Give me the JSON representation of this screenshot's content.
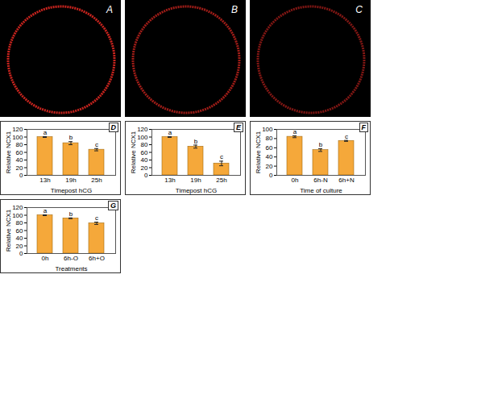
{
  "images": [
    {
      "label": "A"
    },
    {
      "label": "B"
    },
    {
      "label": "C"
    }
  ],
  "chart_data": [
    {
      "type": "bar",
      "title": "D",
      "categories": [
        "13h",
        "19h",
        "25h"
      ],
      "values": [
        100,
        84,
        67
      ],
      "errors": [
        1,
        4,
        3
      ],
      "significance": [
        "a",
        "b",
        "c"
      ],
      "color": "#f5a83a",
      "ylabel": "Relative NCX1",
      "xlabel": "Timepost hCG",
      "ylim": [
        0,
        120
      ],
      "yticks": [
        0,
        20,
        40,
        60,
        80,
        100,
        120
      ]
    },
    {
      "type": "bar",
      "title": "E",
      "categories": [
        "13h",
        "19h",
        "25h"
      ],
      "values": [
        100,
        75,
        31
      ],
      "errors": [
        1,
        4,
        6
      ],
      "significance": [
        "a",
        "b",
        "c"
      ],
      "color": "#f5a83a",
      "ylabel": "Relative NCX1",
      "xlabel": "Timepost hCG",
      "ylim": [
        0,
        120
      ],
      "yticks": [
        0,
        20,
        40,
        60,
        80,
        100,
        120
      ]
    },
    {
      "type": "bar",
      "title": "F",
      "categories": [
        "0h",
        "6h-N",
        "6h+N"
      ],
      "values": [
        84,
        55,
        75
      ],
      "errors": [
        2,
        3,
        1
      ],
      "significance": [
        "a",
        "b",
        "c"
      ],
      "color": "#f5a83a",
      "ylabel": "Relative NCX1",
      "xlabel": "Time of culture",
      "ylim": [
        0,
        100
      ],
      "yticks": [
        0,
        20,
        40,
        60,
        80,
        100
      ]
    },
    {
      "type": "bar",
      "title": "G",
      "categories": [
        "0h",
        "6h-O",
        "6h+O"
      ],
      "values": [
        100,
        92,
        79
      ],
      "errors": [
        1,
        1,
        3
      ],
      "significance": [
        "a",
        "b",
        "c"
      ],
      "color": "#f5a83a",
      "ylabel": "Relative NCX1",
      "xlabel": "Treatments",
      "ylim": [
        0,
        120
      ],
      "yticks": [
        0,
        20,
        40,
        60,
        80,
        100,
        120
      ]
    }
  ]
}
